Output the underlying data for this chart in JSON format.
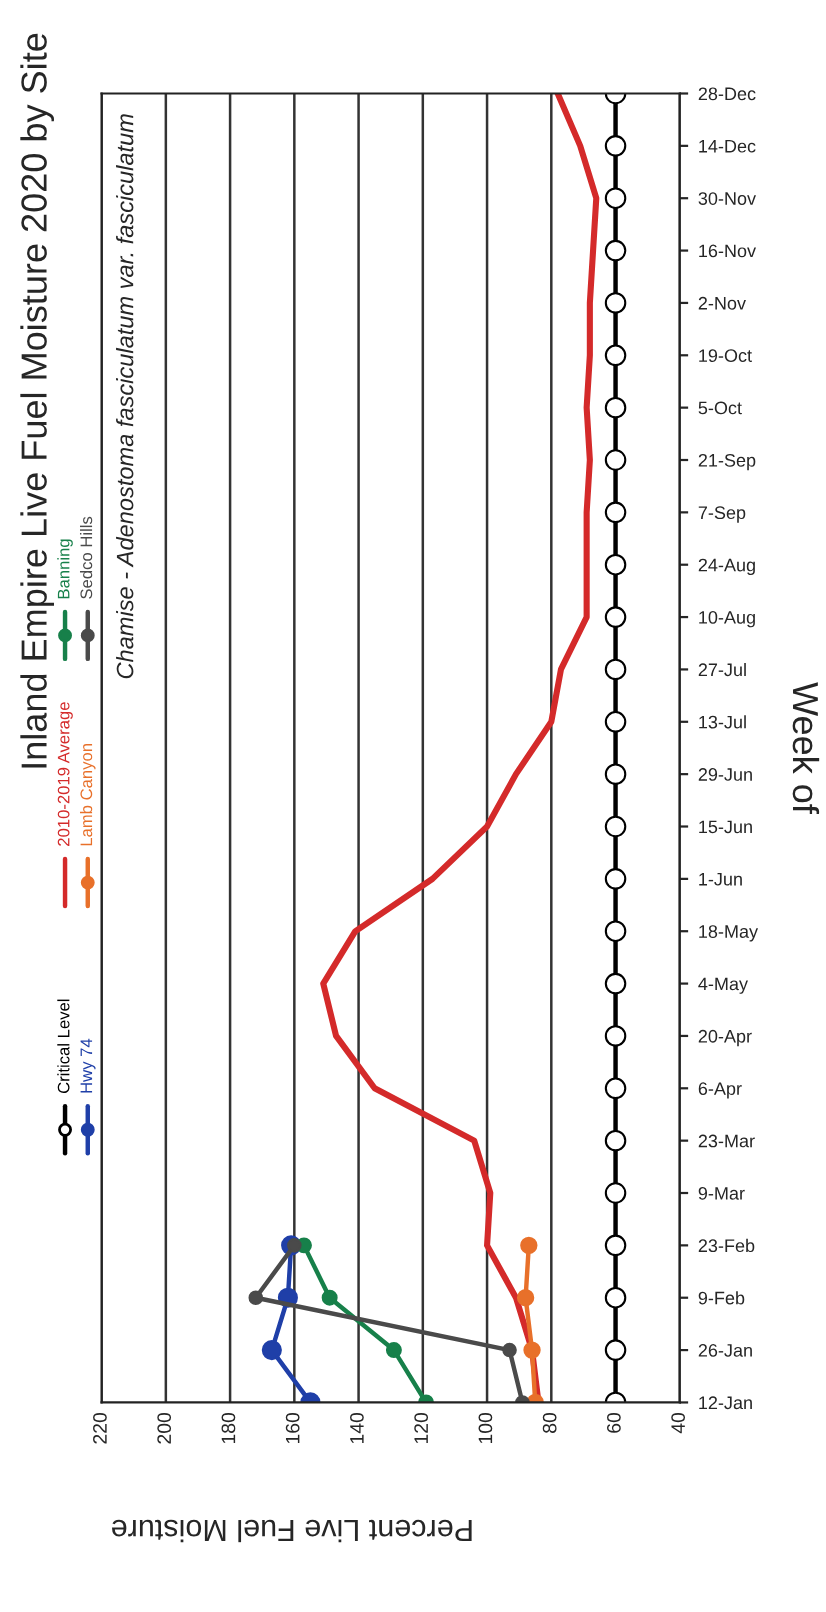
{
  "chart_data": {
    "type": "line",
    "orientation": "horizontal",
    "title": "Inland Empire Live Fuel Moisture 2020 by Site",
    "subtitle": "Chamise - Adenostoma fasciculatum var. fasciculatum",
    "xlabel": "Percent Live Fuel Moisture",
    "ylabel": "Week of",
    "categories": [
      "28-Dec",
      "14-Dec",
      "30-Nov",
      "16-Nov",
      "2-Nov",
      "19-Oct",
      "5-Oct",
      "21-Sep",
      "7-Sep",
      "24-Aug",
      "10-Aug",
      "27-Jul",
      "13-Jul",
      "29-Jun",
      "15-Jun",
      "1-Jun",
      "18-May",
      "4-May",
      "20-Apr",
      "6-Apr",
      "23-Mar",
      "9-Mar",
      "23-Feb",
      "9-Feb",
      "26-Jan",
      "12-Jan"
    ],
    "xlim": [
      220,
      40
    ],
    "xticks": [
      220,
      200,
      180,
      160,
      140,
      120,
      100,
      80,
      60,
      40
    ],
    "grid": "x",
    "legend": "left",
    "series": [
      {
        "name": "Critical Level",
        "color": "#000000",
        "marker": "circle",
        "values": [
          60,
          60,
          60,
          60,
          60,
          60,
          60,
          60,
          60,
          60,
          60,
          60,
          60,
          60,
          60,
          60,
          60,
          60,
          60,
          60,
          60,
          60,
          60,
          60,
          60,
          60
        ]
      },
      {
        "name": "Hwy 74",
        "color": "#1f3fa8",
        "marker": "circle",
        "values": [
          null,
          null,
          null,
          null,
          null,
          null,
          null,
          null,
          null,
          null,
          null,
          null,
          null,
          null,
          null,
          null,
          null,
          null,
          null,
          null,
          null,
          null,
          161,
          162,
          167,
          155
        ]
      },
      {
        "name": "2010-2019 Average",
        "color": "#d42a2a",
        "marker": "none",
        "values": [
          78,
          71,
          66,
          67,
          68,
          68,
          69,
          68,
          69,
          69,
          69,
          77,
          80,
          91,
          100,
          117,
          141,
          151,
          147,
          135,
          104,
          99,
          100,
          91,
          86,
          84
        ]
      },
      {
        "name": "Lamb Canyon",
        "color": "#e8702a",
        "marker": "circle",
        "values": [
          null,
          null,
          null,
          null,
          null,
          null,
          null,
          null,
          null,
          null,
          null,
          null,
          null,
          null,
          null,
          null,
          null,
          null,
          null,
          null,
          null,
          null,
          87,
          88,
          86,
          85
        ]
      },
      {
        "name": "Banning",
        "color": "#17804a",
        "marker": "circle",
        "values": [
          null,
          null,
          null,
          null,
          null,
          null,
          null,
          null,
          null,
          null,
          null,
          null,
          null,
          null,
          null,
          null,
          null,
          null,
          null,
          null,
          null,
          null,
          157,
          149,
          129,
          119
        ]
      },
      {
        "name": "Sedco Hills",
        "color": "#4a4a4a",
        "marker": "circle",
        "values": [
          null,
          null,
          null,
          null,
          null,
          null,
          null,
          null,
          null,
          null,
          null,
          null,
          null,
          null,
          null,
          null,
          null,
          null,
          null,
          null,
          null,
          null,
          160,
          172,
          93,
          89
        ]
      }
    ]
  }
}
